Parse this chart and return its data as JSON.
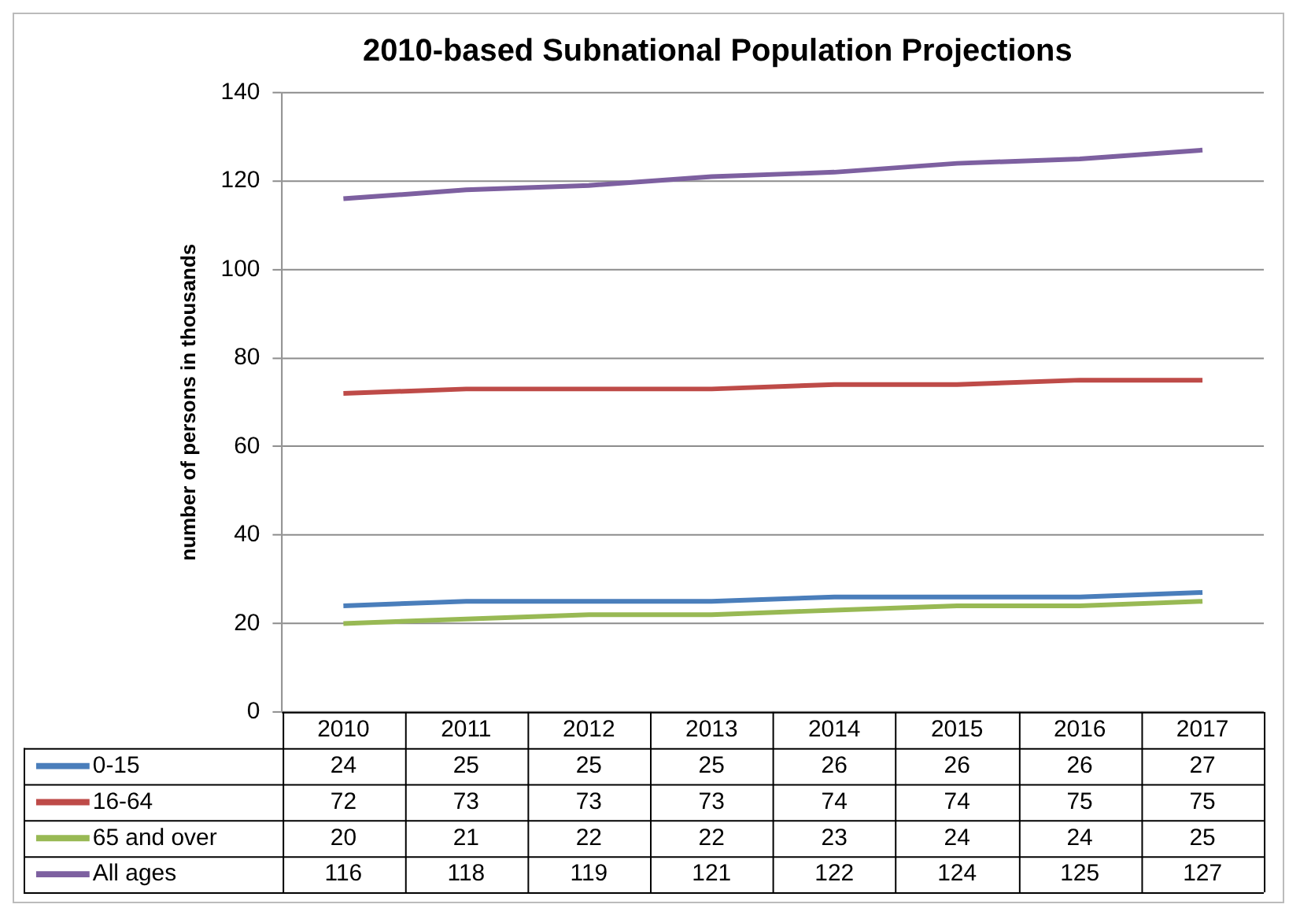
{
  "chart_data": {
    "type": "line",
    "title": "2010-based Subnational Population Projections",
    "ylabel": "number of persons in thousands",
    "categories": [
      "2010",
      "2011",
      "2012",
      "2013",
      "2014",
      "2015",
      "2016",
      "2017"
    ],
    "series": [
      {
        "name": "0-15",
        "color": "#4a7ebb",
        "values": [
          24,
          25,
          25,
          25,
          26,
          26,
          26,
          27
        ]
      },
      {
        "name": "16-64",
        "color": "#be4b48",
        "values": [
          72,
          73,
          73,
          73,
          74,
          74,
          75,
          75
        ]
      },
      {
        "name": "65 and over",
        "color": "#98b954",
        "values": [
          20,
          21,
          22,
          22,
          23,
          24,
          24,
          25
        ]
      },
      {
        "name": "All ages",
        "color": "#7d60a0",
        "values": [
          116,
          118,
          119,
          121,
          122,
          124,
          125,
          127
        ]
      }
    ],
    "ylim": [
      0,
      140
    ],
    "yticks": [
      0,
      20,
      40,
      60,
      80,
      100,
      120,
      140
    ],
    "grid": "y",
    "legend": "bottom",
    "data_labels": true,
    "marker": "none",
    "line_style": "solid"
  }
}
